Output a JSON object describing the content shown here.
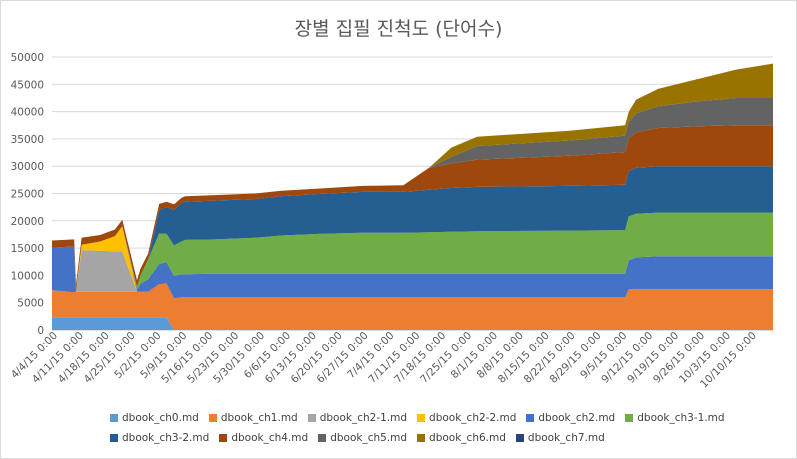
{
  "chart_data": {
    "type": "area",
    "stacked": true,
    "title": "장별 집필 진척도 (단어수)",
    "xlabel": "",
    "ylabel": "",
    "ylim": [
      0,
      50000
    ],
    "y_ticks": [
      "0",
      "5000",
      "10000",
      "15000",
      "20000",
      "25000",
      "30000",
      "35000",
      "40000",
      "45000",
      "50000"
    ],
    "x_tick_labels": [
      "4/4/15 0:00",
      "4/11/15 0:00",
      "4/18/15 0:00",
      "4/25/15 0:00",
      "5/2/15 0:00",
      "5/9/15 0:00",
      "5/16/15 0:00",
      "5/23/15 0:00",
      "5/30/15 0:00",
      "6/6/15 0:00",
      "6/13/15 0:00",
      "6/20/15 0:00",
      "6/27/15 0:00",
      "7/4/15 0:00",
      "7/11/15 0:00",
      "7/18/15 0:00",
      "7/25/15 0:00",
      "8/1/15 0:00",
      "8/8/15 0:00",
      "8/15/15 0:00",
      "8/22/15 0:00",
      "8/29/15 0:00",
      "9/5/15 0:00",
      "9/12/15 0:00",
      "9/19/15 0:00",
      "9/26/15 0:00",
      "10/3/15 0:00",
      "10/10/15 0:00"
    ],
    "x_range_days": [
      0,
      195
    ],
    "x": [
      0,
      6,
      6.5,
      8,
      13,
      17,
      19,
      23,
      24,
      26,
      29,
      31,
      33,
      35,
      36,
      44,
      55,
      62,
      72,
      84,
      95,
      102,
      108,
      115,
      140,
      155,
      156,
      158,
      164,
      175,
      185,
      195
    ],
    "series": [
      {
        "name": "dbook_ch0.md",
        "color": "#5b9bd5",
        "values": [
          2300,
          2300,
          2300,
          2300,
          2300,
          2300,
          2300,
          2300,
          2300,
          2300,
          2300,
          2300,
          0,
          0,
          0,
          0,
          0,
          0,
          0,
          0,
          0,
          0,
          0,
          0,
          0,
          0,
          0,
          0,
          0,
          0,
          0,
          0
        ]
      },
      {
        "name": "dbook_ch1.md",
        "color": "#ed7d31",
        "values": [
          5000,
          4600,
          4700,
          4700,
          4700,
          4700,
          4700,
          4700,
          4700,
          4700,
          6100,
          6200,
          5800,
          6000,
          6000,
          6000,
          6000,
          6000,
          6000,
          6000,
          6000,
          6000,
          6000,
          6000,
          6000,
          6000,
          7500,
          7500,
          7500,
          7500,
          7500,
          7500
        ]
      },
      {
        "name": "dbook_ch2-1.md",
        "color": "#a5a5a5",
        "values": [
          0,
          0,
          0,
          7600,
          7500,
          7400,
          7400,
          0,
          0,
          0,
          0,
          0,
          0,
          0,
          0,
          0,
          0,
          0,
          0,
          0,
          0,
          0,
          0,
          0,
          0,
          0,
          0,
          0,
          0,
          0,
          0,
          0
        ]
      },
      {
        "name": "dbook_ch2-2.md",
        "color": "#ffc000",
        "values": [
          0,
          0,
          0,
          1000,
          1700,
          2800,
          4600,
          0,
          0,
          0,
          0,
          0,
          0,
          0,
          0,
          0,
          0,
          0,
          0,
          0,
          0,
          0,
          0,
          0,
          0,
          0,
          0,
          0,
          0,
          0,
          0,
          0
        ]
      },
      {
        "name": "dbook_ch2.md",
        "color": "#4472c4",
        "values": [
          7800,
          8400,
          0,
          0,
          0,
          0,
          0,
          500,
          1500,
          2300,
          3700,
          3900,
          4100,
          4200,
          4200,
          4300,
          4300,
          4300,
          4300,
          4300,
          4300,
          4300,
          4300,
          4300,
          4300,
          4300,
          5300,
          5800,
          6000,
          6000,
          6000,
          6000
        ]
      },
      {
        "name": "dbook_ch3-1.md",
        "color": "#70ad47",
        "values": [
          0,
          0,
          0,
          0,
          0,
          0,
          0,
          400,
          1600,
          3600,
          5600,
          5200,
          5600,
          6000,
          6300,
          6300,
          6600,
          7000,
          7300,
          7500,
          7500,
          7600,
          7700,
          7800,
          7900,
          8000,
          8000,
          8000,
          8000,
          8000,
          8000,
          8000
        ]
      },
      {
        "name": "dbook_ch3-2.md",
        "color": "#255e91",
        "values": [
          0,
          0,
          0,
          0,
          0,
          0,
          0,
          0,
          0,
          0,
          4300,
          4900,
          6500,
          7000,
          7000,
          7100,
          7100,
          7200,
          7300,
          7500,
          7500,
          7800,
          8000,
          8100,
          8200,
          8300,
          8300,
          8400,
          8500,
          8500,
          8500,
          8500
        ]
      },
      {
        "name": "dbook_ch4.md",
        "color": "#9e480e",
        "values": [
          1300,
          1300,
          1300,
          1300,
          1200,
          1200,
          1200,
          1200,
          1200,
          1100,
          1100,
          1000,
          1000,
          1000,
          1000,
          1000,
          1000,
          1000,
          1000,
          1100,
          1200,
          4000,
          4500,
          5000,
          5500,
          6000,
          6000,
          6500,
          7000,
          7300,
          7500,
          7500
        ]
      },
      {
        "name": "dbook_ch5.md",
        "color": "#636363",
        "values": [
          0,
          0,
          0,
          0,
          0,
          0,
          0,
          0,
          0,
          0,
          0,
          0,
          0,
          0,
          0,
          0,
          0,
          0,
          0,
          0,
          0,
          0,
          1200,
          2500,
          2800,
          3000,
          3000,
          3500,
          4000,
          4600,
          5000,
          5000
        ]
      },
      {
        "name": "dbook_ch6.md",
        "color": "#997300",
        "values": [
          0,
          0,
          0,
          0,
          0,
          0,
          0,
          0,
          0,
          0,
          0,
          0,
          0,
          0,
          0,
          0,
          0,
          0,
          0,
          0,
          0,
          0,
          1700,
          1700,
          1800,
          1900,
          1900,
          2500,
          3200,
          4100,
          5200,
          6300
        ]
      },
      {
        "name": "dbook_ch7.md",
        "color": "#264478",
        "values": [
          0,
          0,
          0,
          0,
          0,
          0,
          0,
          0,
          0,
          0,
          0,
          0,
          0,
          0,
          0,
          0,
          0,
          0,
          0,
          0,
          0,
          0,
          0,
          0,
          0,
          0,
          0,
          0,
          0,
          0,
          0,
          0
        ]
      }
    ]
  }
}
